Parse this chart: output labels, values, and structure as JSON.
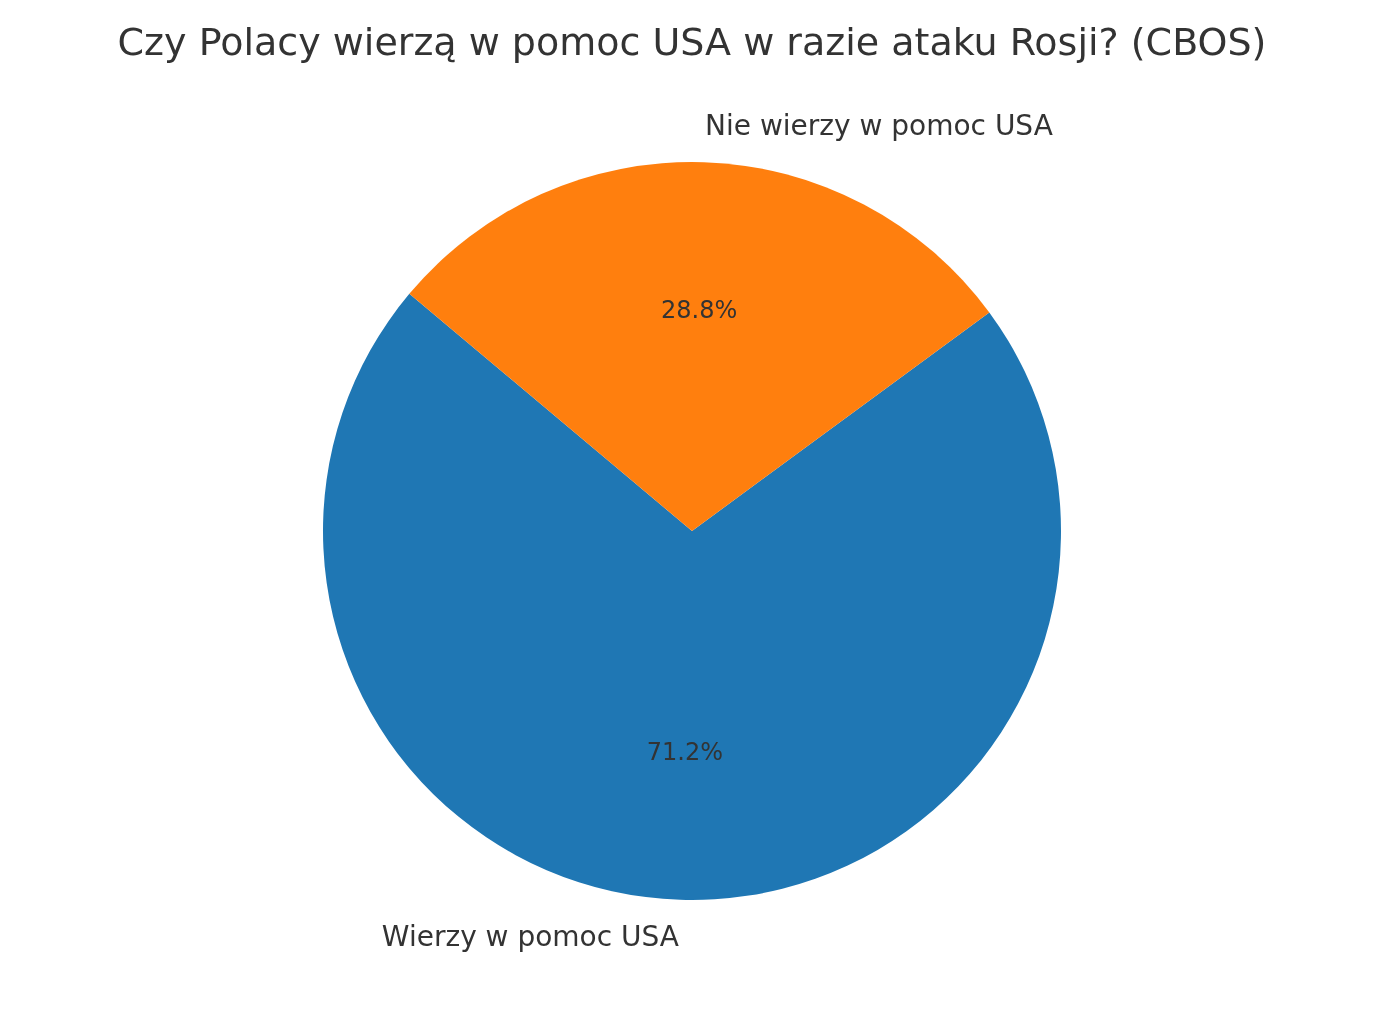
{
  "chart_data": {
    "type": "pie",
    "title": "Czy Polacy wierzą w pomoc USA w razie ataku Rosji? (CBOS)",
    "categories": [
      "Wierzy w pomoc USA",
      "Nie wierzy w pomoc USA"
    ],
    "values": [
      71.2,
      28.8
    ],
    "colors": [
      "#1f77b4",
      "#ff7f0e"
    ],
    "value_labels": [
      "71.2%",
      "28.8%"
    ]
  }
}
